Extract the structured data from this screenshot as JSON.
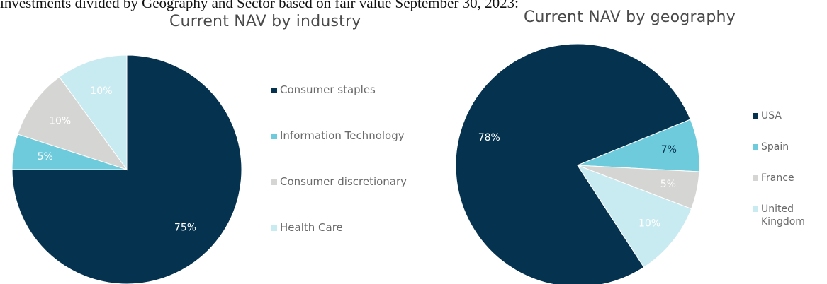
{
  "caption": "investments divided by Geography and Sector based on fair value September 30, 2023:",
  "chart_data": [
    {
      "type": "pie",
      "title": "Current NAV by industry",
      "labels": [
        "Consumer staples",
        "Information Technology",
        "Consumer discretionary",
        "Health Care"
      ],
      "values": [
        75,
        5,
        10,
        10
      ],
      "value_labels": [
        "75%",
        "5%",
        "10%",
        "10%"
      ],
      "colors": [
        "#05324f",
        "#6ecbdc",
        "#d5d5d3",
        "#c8eaf1"
      ],
      "label_colors": [
        "#ffffff",
        "#ffffff",
        "#ffffff",
        "#ffffff"
      ],
      "legend_position": "right",
      "start": "12 o'clock",
      "direction": "clockwise"
    },
    {
      "type": "pie",
      "title": "Current NAV by geography",
      "labels": [
        "USA",
        "Spain",
        "France",
        "United Kingdom"
      ],
      "values": [
        78,
        7,
        5,
        10
      ],
      "value_labels": [
        "78%",
        "7%",
        "5%",
        "10%"
      ],
      "colors": [
        "#05324f",
        "#6ecbdc",
        "#d5d5d3",
        "#c8eaf1"
      ],
      "label_colors": [
        "#ffffff",
        "#05324f",
        "#ffffff",
        "#ffffff"
      ],
      "legend_position": "right",
      "start": "5 o'clock",
      "direction": "clockwise"
    }
  ]
}
